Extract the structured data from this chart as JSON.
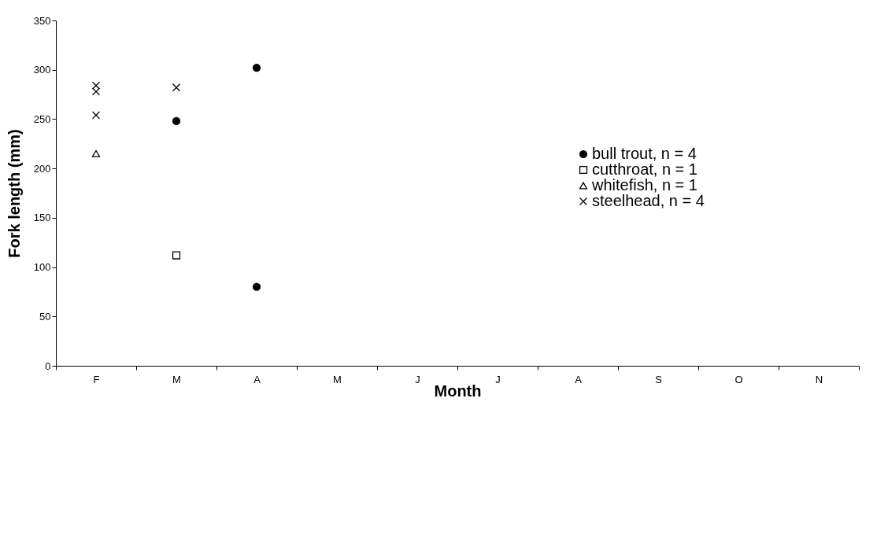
{
  "chart_data": {
    "type": "scatter",
    "xlabel": "Month",
    "ylabel": "Fork length (mm)",
    "categories": [
      "F",
      "M",
      "A",
      "M",
      "J",
      "J",
      "A",
      "S",
      "O",
      "N"
    ],
    "ylim": [
      0,
      350
    ],
    "yticks": [
      0,
      50,
      100,
      150,
      200,
      250,
      300,
      350
    ],
    "legend": "right",
    "series": [
      {
        "name": "bull trout, n = 4",
        "color": "#000000",
        "marker": "circle",
        "x": [
          "M",
          "A",
          "A"
        ],
        "values": [
          248,
          80,
          302
        ]
      },
      {
        "name": "cutthroat, n = 1",
        "color": "#000000",
        "marker": "square",
        "x": [
          "M"
        ],
        "values": [
          112
        ]
      },
      {
        "name": "whitefish, n = 1",
        "color": "#000000",
        "marker": "triangle",
        "x": [
          "F"
        ],
        "values": [
          215
        ]
      },
      {
        "name": "steelhead, n = 4",
        "color": "#000000",
        "marker": "cross",
        "x": [
          "F",
          "F",
          "F",
          "M"
        ],
        "values": [
          278,
          254,
          284,
          282
        ]
      }
    ]
  }
}
